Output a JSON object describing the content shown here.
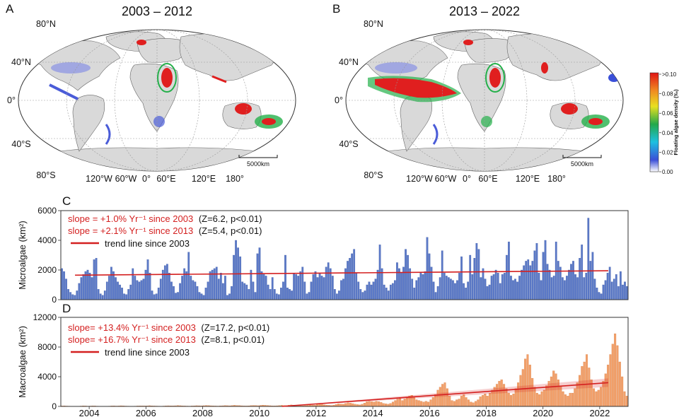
{
  "colors": {
    "micro_bar": "#5b79c7",
    "macro_bar": "#f2a06a",
    "trend": "#d42020",
    "land": "#d9d9d9",
    "ocean": "#ffffff",
    "bloom_low": "#4a5cd8",
    "bloom_mid": "#24b04a",
    "bloom_high": "#e01f1f"
  },
  "maps": [
    {
      "letter": "A",
      "title": "2003 – 2012",
      "lat_labels": [
        "80°N",
        "40°N",
        "0°",
        "40°S",
        "80°S"
      ],
      "lon_labels": [
        "120°W",
        "60°W",
        "0°",
        "60°E",
        "120°E",
        "180°"
      ],
      "scale_label": "5000km"
    },
    {
      "letter": "B",
      "title": "2013 – 2022",
      "lat_labels": [
        "80°N",
        "40°N",
        "0°",
        "40°S",
        "80°S"
      ],
      "lon_labels": [
        "120°W",
        "60°W",
        "0°",
        "60°E",
        "120°E",
        "180°"
      ],
      "scale_label": "5000km"
    }
  ],
  "colorbar": {
    "label": "Floating algae density (‰)",
    "ticks": [
      "0.00",
      "0.02",
      "0.04",
      "0.06",
      "0.08",
      ">0.10"
    ],
    "colors": [
      "#ffffff",
      "#3a4fd8",
      "#1ec0e0",
      "#22a84a",
      "#e8e020",
      "#f08a20",
      "#e01414"
    ]
  },
  "chart_data": [
    {
      "panel": "C",
      "type": "bar",
      "ylabel": "Microalgae (km²)",
      "ylim": [
        0,
        6000
      ],
      "yticks": [
        "0",
        "2000",
        "4000",
        "6000"
      ],
      "x_start": 2003.0,
      "x_end": 2023.0,
      "bar_interval": "monthly",
      "annotations": [
        {
          "text": "slope = +1.0% Yr⁻¹ since 2003",
          "stat": "(Z=6.2, p<0.01)"
        },
        {
          "text": "slope = +2.1% Yr⁻¹ since 2013",
          "stat": "(Z=5.4, p<0.01)"
        },
        {
          "text": "trend line since 2003"
        }
      ],
      "trend": {
        "x": [
          2003.5,
          2022.3
        ],
        "y": [
          1650,
          1950
        ]
      },
      "values": [
        2100,
        1900,
        1400,
        700,
        500,
        350,
        300,
        600,
        1100,
        1500,
        1700,
        1900,
        2000,
        1800,
        1500,
        2700,
        2800,
        700,
        400,
        300,
        600,
        1200,
        1600,
        2200,
        1900,
        1500,
        1200,
        1000,
        800,
        400,
        350,
        700,
        1000,
        2100,
        1600,
        1300,
        1200,
        1300,
        1400,
        2000,
        2700,
        1800,
        600,
        350,
        400,
        800,
        1400,
        2000,
        2300,
        2400,
        1800,
        1200,
        900,
        450,
        500,
        1100,
        1600,
        2100,
        1900,
        3200,
        1600,
        1300,
        1200,
        900,
        500,
        400,
        300,
        800,
        1200,
        1900,
        2000,
        2100,
        2200,
        1400,
        1800,
        1100,
        1600,
        300,
        400,
        900,
        3000,
        4000,
        3500,
        2900,
        1200,
        1100,
        1000,
        700,
        2000,
        1200,
        500,
        3100,
        3500,
        1900,
        1700,
        1600,
        1000,
        700,
        1500,
        700,
        400,
        350,
        800,
        1200,
        3000,
        800,
        700,
        600,
        1800,
        1700,
        1600,
        1900,
        2200,
        1200,
        400,
        500,
        1200,
        1700,
        1900,
        1500,
        1800,
        1600,
        1500,
        2200,
        2500,
        2100,
        1600,
        700,
        400,
        600,
        1300,
        1400,
        2100,
        2600,
        2800,
        3100,
        3400,
        1800,
        1200,
        700,
        500,
        600,
        1000,
        1200,
        1000,
        1200,
        1400,
        2000,
        3700,
        2100,
        1000,
        800,
        600,
        1000,
        1100,
        1300,
        2500,
        2100,
        1800,
        2200,
        3400,
        3000,
        2100,
        1400,
        800,
        1300,
        1500,
        1800,
        1700,
        1900,
        4200,
        3100,
        2200,
        1200,
        500,
        900,
        1500,
        3300,
        1800,
        1600,
        1500,
        1400,
        1300,
        1100,
        1300,
        1800,
        2900,
        1100,
        800,
        1200,
        3000,
        1700,
        2800,
        3800,
        3400,
        1500,
        2100,
        1400,
        900,
        1000,
        1600,
        1700,
        2000,
        1800,
        1100,
        1700,
        1800,
        3000,
        3900,
        1600,
        1300,
        1400,
        1200,
        1600,
        2000,
        2300,
        2600,
        2700,
        2300,
        2600,
        3300,
        3800,
        1800,
        1300,
        3200,
        4000,
        2400,
        2000,
        1500,
        1600,
        3900,
        2600,
        2200,
        1500,
        1300,
        1600,
        2000,
        2400,
        2600,
        1700,
        1500,
        2800,
        3700,
        1500,
        1800,
        5500,
        2600,
        3200,
        1400,
        800,
        500,
        400,
        1000,
        1300,
        1800,
        2200,
        1200,
        1400,
        1700,
        900,
        1900,
        1000,
        1200,
        900
      ]
    },
    {
      "panel": "D",
      "type": "bar",
      "ylabel": "Macroalgae (km²)",
      "ylim": [
        0,
        12000
      ],
      "yticks": [
        "0",
        "4000",
        "8000",
        "12000"
      ],
      "x_start": 2003.0,
      "x_end": 2023.0,
      "bar_interval": "monthly",
      "xticks": [
        "2004",
        "2006",
        "2008",
        "2010",
        "2012",
        "2014",
        "2016",
        "2018",
        "2020",
        "2022"
      ],
      "annotations": [
        {
          "text": "slope= +13.4% Yr⁻¹ since 2003",
          "stat": "(Z=17.2, p<0.01)"
        },
        {
          "text": "slope= +16.7% Yr⁻¹ since 2013",
          "stat": "(Z=8.1, p<0.01)"
        },
        {
          "text": "trend line since 2003"
        }
      ],
      "trend": {
        "x": [
          2010.8,
          2022.3
        ],
        "y": [
          0,
          3200
        ]
      },
      "values": [
        60,
        80,
        50,
        40,
        30,
        20,
        20,
        30,
        50,
        80,
        60,
        40,
        50,
        70,
        60,
        40,
        30,
        20,
        20,
        30,
        40,
        60,
        70,
        50,
        60,
        90,
        70,
        50,
        40,
        30,
        30,
        40,
        60,
        80,
        70,
        60,
        80,
        100,
        80,
        60,
        50,
        40,
        30,
        50,
        70,
        90,
        80,
        70,
        90,
        120,
        100,
        80,
        60,
        50,
        40,
        60,
        80,
        100,
        90,
        80,
        100,
        130,
        110,
        90,
        70,
        60,
        50,
        70,
        90,
        110,
        100,
        90,
        120,
        150,
        130,
        110,
        90,
        70,
        60,
        80,
        110,
        130,
        120,
        100,
        140,
        170,
        150,
        130,
        100,
        80,
        70,
        90,
        120,
        150,
        130,
        110,
        160,
        200,
        180,
        150,
        120,
        100,
        90,
        110,
        150,
        200,
        180,
        160,
        250,
        320,
        280,
        220,
        180,
        150,
        130,
        180,
        260,
        350,
        330,
        300,
        400,
        500,
        450,
        380,
        300,
        250,
        220,
        300,
        450,
        650,
        700,
        650,
        600,
        700,
        650,
        550,
        400,
        350,
        300,
        400,
        600,
        800,
        1000,
        1200,
        800,
        1000,
        1200,
        1400,
        1500,
        1200,
        900,
        800,
        700,
        600,
        700,
        600,
        900,
        1200,
        1600,
        2200,
        2600,
        3000,
        3200,
        2400,
        1400,
        800,
        700,
        900,
        1000,
        1400,
        1600,
        1200,
        900,
        600,
        500,
        700,
        900,
        1300,
        1500,
        1700,
        1400,
        1800,
        2200,
        2600,
        3000,
        3400,
        3600,
        3000,
        2400,
        1800,
        1500,
        1700,
        2400,
        3200,
        4200,
        5000,
        6400,
        7000,
        5600,
        3800,
        2600,
        1800,
        1600,
        2000,
        2200,
        2800,
        3400,
        4000,
        4800,
        4400,
        3600,
        2800,
        2000,
        1600,
        1400,
        1800,
        1800,
        2400,
        3200,
        4200,
        5400,
        6000,
        7000,
        5200,
        3600,
        2400,
        2000,
        2200,
        2600,
        3400,
        4400,
        5600,
        7000,
        8400,
        9800,
        8200,
        6000,
        4000,
        2000,
        1400
      ]
    }
  ]
}
